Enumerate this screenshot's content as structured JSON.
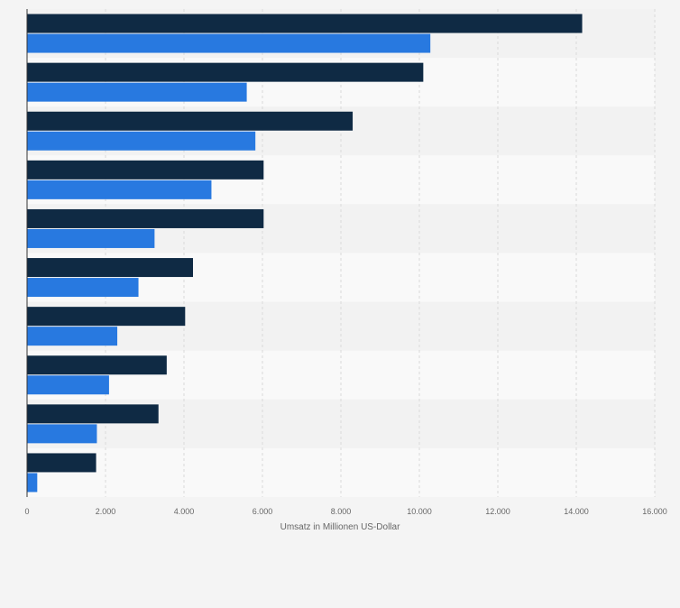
{
  "chart_data": {
    "type": "bar",
    "orientation": "horizontal",
    "categories": [
      "",
      "",
      "",
      "",
      "",
      "",
      "",
      "",
      "",
      ""
    ],
    "series": [
      {
        "color": "#0f2a44",
        "values": [
          14150,
          10100,
          8300,
          6030,
          6030,
          4230,
          4030,
          3560,
          3350,
          1760
        ]
      },
      {
        "color": "#2879e0",
        "values": [
          10280,
          5600,
          5820,
          4700,
          3250,
          2840,
          2300,
          2090,
          1780,
          260
        ]
      }
    ],
    "xlabel": "Umsatz in Millionen US-Dollar",
    "ylabel": "",
    "xlim": [
      0,
      16000
    ],
    "xticks": [
      0,
      2000,
      4000,
      6000,
      8000,
      10000,
      12000,
      14000,
      16000
    ],
    "xtick_labels": [
      "0",
      "2.000",
      "4.000",
      "6.000",
      "8.000",
      "10.000",
      "12.000",
      "14.000",
      "16.000"
    ],
    "grid": true,
    "legend": "none"
  }
}
